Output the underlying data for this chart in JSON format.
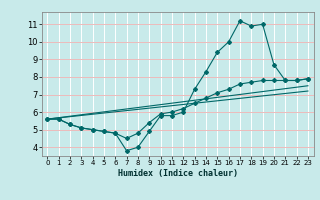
{
  "xlabel": "Humidex (Indice chaleur)",
  "background_color": "#c8eaea",
  "grid_color_white": "#ffffff",
  "grid_color_red": "#e8b0b0",
  "line_color": "#006868",
  "xlim": [
    -0.5,
    23.5
  ],
  "ylim": [
    3.5,
    11.7
  ],
  "xticks": [
    0,
    1,
    2,
    3,
    4,
    5,
    6,
    7,
    8,
    9,
    10,
    11,
    12,
    13,
    14,
    15,
    16,
    17,
    18,
    19,
    20,
    21,
    22,
    23
  ],
  "yticks": [
    4,
    5,
    6,
    7,
    8,
    9,
    10,
    11
  ],
  "curve1_x": [
    0,
    1,
    2,
    3,
    4,
    5,
    6,
    7,
    8,
    9,
    10,
    11,
    12,
    13,
    14,
    15,
    16,
    17,
    18,
    19,
    20,
    21,
    22,
    23
  ],
  "curve1_y": [
    5.6,
    5.6,
    5.3,
    5.1,
    5.0,
    4.9,
    4.8,
    3.8,
    4.0,
    4.9,
    5.8,
    5.8,
    6.0,
    7.3,
    8.3,
    9.4,
    10.0,
    11.2,
    10.9,
    11.0,
    8.7,
    7.8,
    7.8,
    7.9
  ],
  "curve2_x": [
    0,
    1,
    2,
    3,
    4,
    5,
    6,
    7,
    8,
    9,
    10,
    11,
    12,
    13,
    14,
    15,
    16,
    17,
    18,
    19,
    20,
    21,
    22,
    23
  ],
  "curve2_y": [
    5.6,
    5.6,
    5.3,
    5.1,
    5.0,
    4.9,
    4.8,
    4.5,
    4.8,
    5.4,
    5.9,
    6.0,
    6.2,
    6.5,
    6.8,
    7.1,
    7.3,
    7.6,
    7.7,
    7.8,
    7.8,
    7.8,
    7.8,
    7.9
  ],
  "trend1_x": [
    0,
    23
  ],
  "trend1_y": [
    5.6,
    7.2
  ],
  "trend2_x": [
    0,
    23
  ],
  "trend2_y": [
    5.6,
    7.5
  ]
}
